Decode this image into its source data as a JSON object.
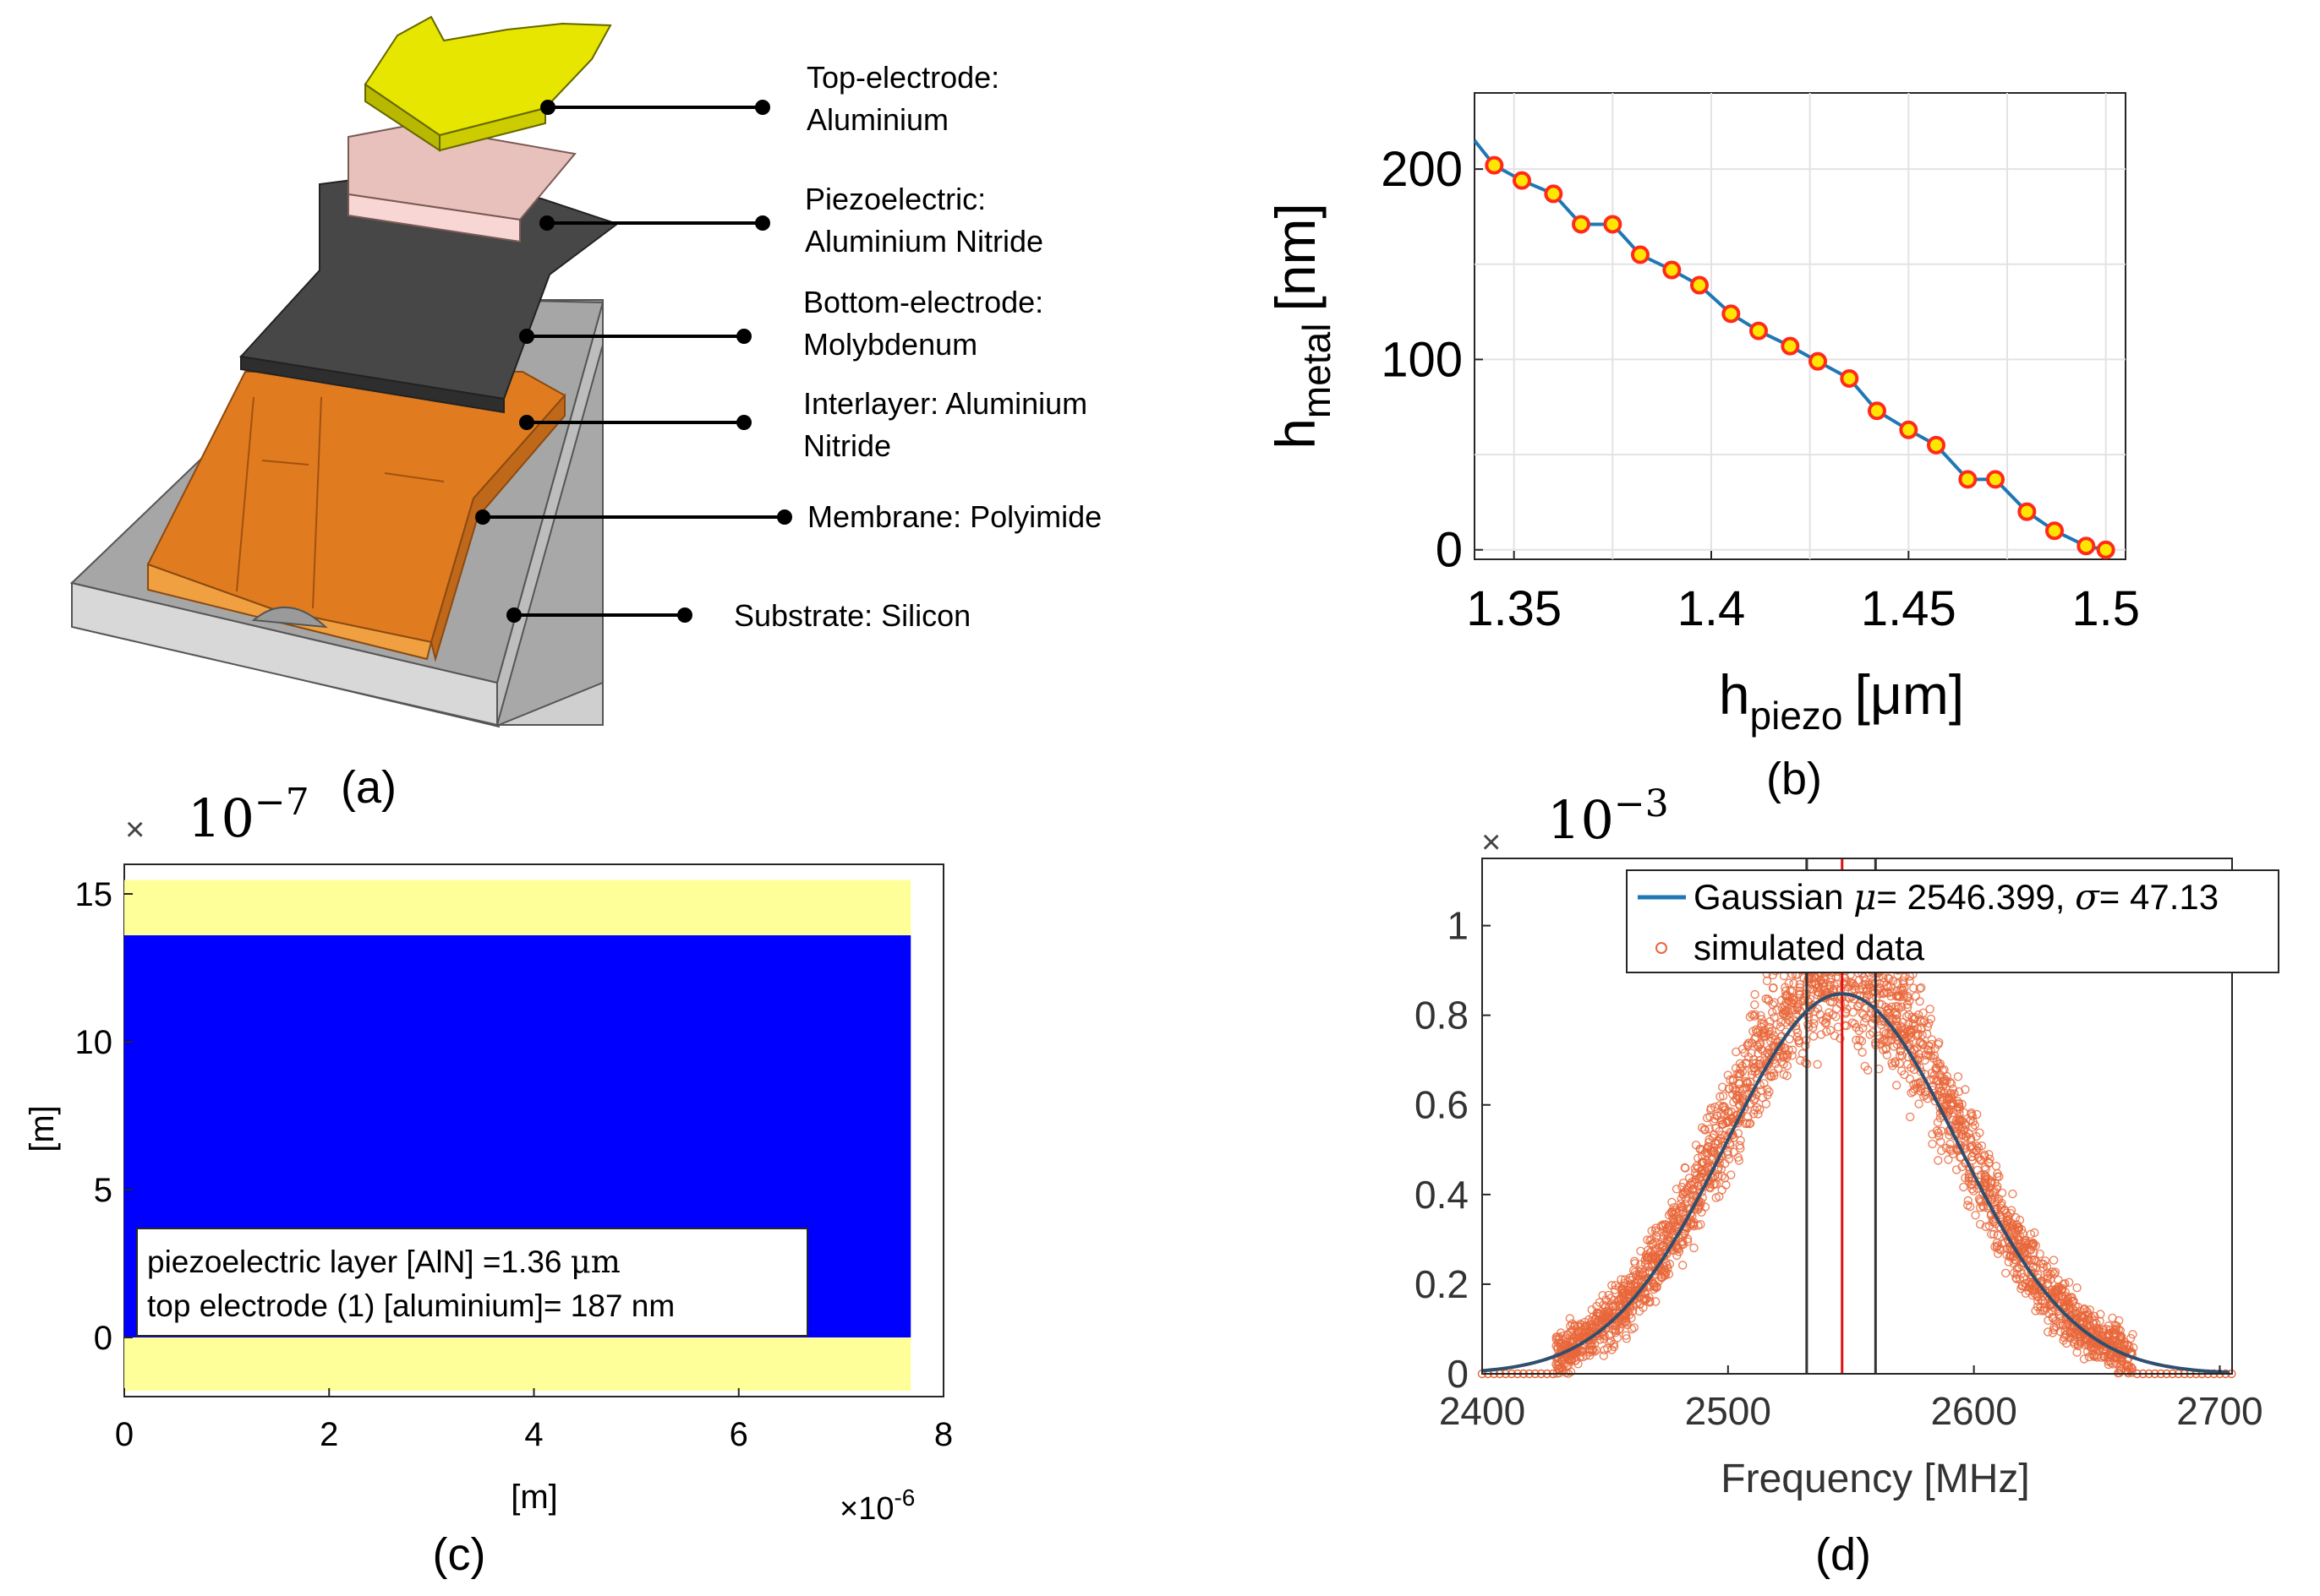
{
  "panel_labels": {
    "a": "(a)",
    "b": "(b)",
    "c": "(c)",
    "d": "(d)"
  },
  "layers": [
    {
      "name": "Top-electrode:",
      "material": "Aluminium"
    },
    {
      "name": "Piezoelectric:",
      "material": "Aluminium Nitride"
    },
    {
      "name": "Bottom-electrode:",
      "material": "Molybdenum"
    },
    {
      "name": "Interlayer: Aluminium",
      "material": "Nitride"
    },
    {
      "name": "Membrane: Polyimide",
      "material": ""
    },
    {
      "name": "Substrate: Silicon",
      "material": ""
    }
  ],
  "colors": {
    "top_electrode": "#e6e600",
    "piezo": "#e8c0bc",
    "bottom_electrode": "#474747",
    "membrane": "#e07b20",
    "substrate": "#a8a8a8",
    "line_blue": "#1f77b4",
    "marker_red": "#ff2a1a",
    "marker_yellow": "#ffe600",
    "scatter_orange": "#e8663a",
    "fill_blue": "#0000ff",
    "fill_yellow": "#ffff99"
  },
  "chart_data": [
    {
      "id": "b",
      "type": "line",
      "xlabel_main": "h",
      "xlabel_sub": "piezo",
      "xlabel_unit": "[μm]",
      "ylabel_main": "h",
      "ylabel_sub": "metal",
      "ylabel_unit": "[nm]",
      "xlim": [
        1.34,
        1.505
      ],
      "ylim": [
        -5,
        240
      ],
      "xticks": [
        1.35,
        1.4,
        1.45,
        1.5
      ],
      "xtick_labels": [
        "1.35",
        "1.4",
        "1.45",
        "1.5"
      ],
      "yticks": [
        0,
        100,
        200
      ],
      "ytick_labels": [
        "0",
        "100",
        "200"
      ],
      "grid": true,
      "series": [
        {
          "name": "h_metal vs h_piezo",
          "x": [
            1.34,
            1.345,
            1.352,
            1.36,
            1.367,
            1.375,
            1.382,
            1.39,
            1.397,
            1.405,
            1.412,
            1.42,
            1.427,
            1.435,
            1.442,
            1.45,
            1.457,
            1.465,
            1.472,
            1.48,
            1.487,
            1.495,
            1.5
          ],
          "y": [
            215,
            202,
            194,
            187,
            171,
            171,
            155,
            147,
            139,
            124,
            115,
            107,
            99,
            90,
            73,
            63,
            55,
            37,
            37,
            20,
            10,
            2,
            0
          ],
          "marker_x": [
            1.345,
            1.352,
            1.36,
            1.367,
            1.375,
            1.382,
            1.39,
            1.397,
            1.405,
            1.412,
            1.42,
            1.427,
            1.435,
            1.442,
            1.45,
            1.457,
            1.465,
            1.472,
            1.48,
            1.487,
            1.495,
            1.5
          ],
          "marker_y": [
            202,
            194,
            187,
            171,
            171,
            155,
            147,
            139,
            124,
            115,
            107,
            99,
            90,
            73,
            63,
            55,
            37,
            37,
            20,
            10,
            2,
            0
          ]
        }
      ]
    },
    {
      "id": "c",
      "type": "heatmap",
      "xlabel": "[m]",
      "ylabel": "[m]",
      "x_multiplier": "×10",
      "x_exponent": "-6",
      "y_multiplier": "×",
      "y_exponent_base": "10",
      "y_exponent": "−7",
      "xlim": [
        0,
        8
      ],
      "ylim": [
        -2,
        16
      ],
      "xticks": [
        0,
        2,
        4,
        6,
        8
      ],
      "xtick_labels": [
        "0",
        "2",
        "4",
        "6",
        "8"
      ],
      "yticks": [
        0,
        5,
        10,
        15
      ],
      "ytick_labels": [
        "0",
        "5",
        "10",
        "15"
      ],
      "regions": [
        {
          "name": "bottom electrode",
          "y0": -1.8,
          "y1": 0,
          "x0": 0,
          "x1": 7.68,
          "color": "#ffff99"
        },
        {
          "name": "piezoelectric layer",
          "y0": 0,
          "y1": 13.6,
          "x0": 0,
          "x1": 7.68,
          "color": "#0000ff"
        },
        {
          "name": "top electrode",
          "y0": 13.6,
          "y1": 15.47,
          "x0": 0,
          "x1": 7.68,
          "color": "#ffff99"
        }
      ],
      "annotation_line1_pre": "piezoelectric layer [AlN] =1.36 ",
      "annotation_line1_unit": "μm",
      "annotation_line2": "top electrode (1) [aluminium]= 187 nm"
    },
    {
      "id": "d",
      "type": "scatter",
      "xlabel": "Frequency [MHz]",
      "y_multiplier": "×",
      "y_exponent_base": "10",
      "y_exponent": "−3",
      "xlim": [
        2400,
        2705
      ],
      "ylim": [
        0,
        1.15
      ],
      "xticks": [
        2400,
        2500,
        2600,
        2700
      ],
      "xtick_labels": [
        "2400",
        "2500",
        "2600",
        "2700"
      ],
      "yticks": [
        0,
        0.2,
        0.4,
        0.6,
        0.8,
        1
      ],
      "ytick_labels": [
        "0",
        "0.2",
        "0.4",
        "0.6",
        "0.8",
        "1"
      ],
      "gaussian": {
        "mu": 2546.399,
        "sigma": 47.13,
        "peak": 0.848
      },
      "vlines_black": [
        2532,
        2560
      ],
      "vline_red": 2546.4,
      "legend": {
        "entry1_pre": "Gaussian ",
        "entry1_mid": "= 2546.399, ",
        "entry1_post": "= 47.13",
        "mu_symbol": "μ",
        "sigma_symbol": "σ",
        "entry2": "simulated data",
        "position": "top"
      },
      "scatter_x_range": [
        2430,
        2665
      ],
      "scatter_count": 2600,
      "scatter_noise": 0.055
    }
  ]
}
